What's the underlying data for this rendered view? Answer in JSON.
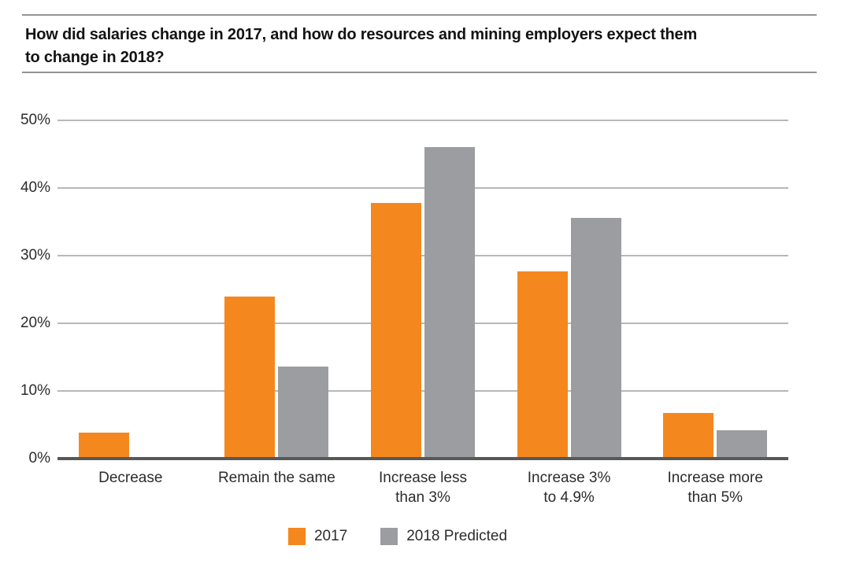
{
  "header": {
    "title_lines": [
      "How did salaries change in 2017, and how do resources and mining employers expect them",
      "to change in 2018?"
    ]
  },
  "chart_data": {
    "type": "bar",
    "title": "How did salaries change in 2017, and how do resources and mining employers expect them to change in 2018?",
    "categories": [
      "Decrease",
      "Remain the same",
      "Increase less\nthan 3%",
      "Increase 3%\nto 4.9%",
      "Increase more\nthan 5%"
    ],
    "series": [
      {
        "name": "2017",
        "color": "#F5871F",
        "values": [
          3.8,
          24,
          37.8,
          27.7,
          6.8
        ]
      },
      {
        "name": "2018 Predicted",
        "color": "#9B9DA0",
        "values": [
          0,
          13.6,
          46,
          35.6,
          4.2
        ]
      }
    ],
    "xlabel": "",
    "ylabel": "",
    "ylim": [
      0,
      50
    ],
    "yticks": [
      0,
      10,
      20,
      30,
      40,
      50
    ],
    "ytick_suffix": "%",
    "grid": true,
    "legend_position": "bottom",
    "colors": {
      "gridline": "#B7B8BA",
      "axis_line": "#57585A",
      "tick_label": "#2C2C2F",
      "rule": "#919396"
    }
  }
}
